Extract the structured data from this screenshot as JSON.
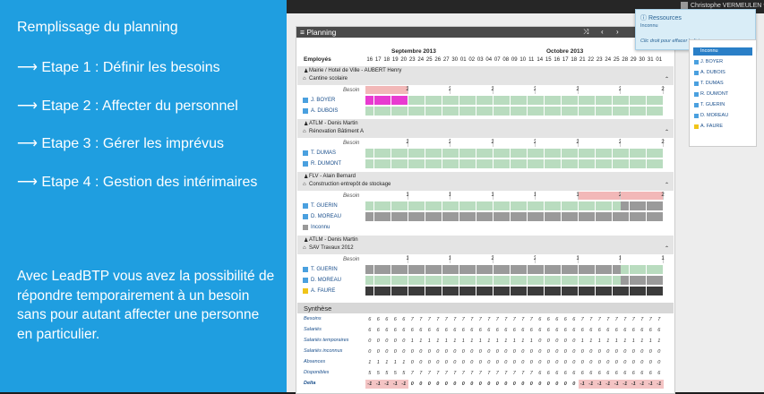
{
  "slide": {
    "title": "Remplissage du planning",
    "steps": [
      "⟶ Etape 1 : Définir les besoins",
      "⟶ Etape 2 : Affecter du personnel",
      "⟶ Etape 3 : Gérer les imprévus",
      "⟶ Etape 4 : Gestion des intérimaires"
    ],
    "paragraph": "Avec LeadBTP vous avez la possibilité de répondre temporairement à un besoin sans pour autant affecter une personne en particulier."
  },
  "app": {
    "user": "Christophe VERMEULEN",
    "panel_title": "Planning",
    "employees_header": "Employés",
    "month1": "Septembre 2013",
    "month2": "Octobre 2013",
    "days": [
      "16",
      "17",
      "18",
      "19",
      "20",
      "23",
      "24",
      "25",
      "26",
      "27",
      "30",
      "01",
      "02",
      "03",
      "04",
      "07",
      "08",
      "09",
      "10",
      "11",
      "14",
      "15",
      "16",
      "17",
      "18",
      "21",
      "22",
      "23",
      "24",
      "25",
      "28",
      "29",
      "30",
      "31",
      "01"
    ],
    "besoin_label": "Besoin"
  },
  "projects": [
    {
      "client": "Mairie / Hotel de Ville - AUBERT Henry",
      "site": "Cantine scolaire",
      "besoins": [
        "2",
        "2",
        "2",
        "2",
        "2",
        "2",
        "2"
      ],
      "rows": [
        {
          "name": "J. BOYER",
          "pattern": "MGGGGGG",
          "icon": "blue"
        },
        {
          "name": "A. DUBOIS",
          "pattern": "GGGGGGG",
          "icon": "blue"
        }
      ]
    },
    {
      "client": "ATLM - Denis Martin",
      "site": "Rénovation Bâtiment A",
      "besoins": [
        "2",
        "2",
        "2",
        "2",
        "2",
        "2",
        "2"
      ],
      "rows": [
        {
          "name": "T. DUMAS",
          "pattern": "GGGGGGG",
          "icon": "blue"
        },
        {
          "name": "R. DUMONT",
          "pattern": "GGGGGGG",
          "icon": "blue"
        }
      ]
    },
    {
      "client": "FLV - Alain Bernard",
      "site": "Construction entrepôt de stockage",
      "besoins": [
        "1",
        "1",
        "1",
        "1",
        "1",
        "2",
        "2"
      ],
      "rows": [
        {
          "name": "T. GUERIN",
          "pattern": "GGGGGGS",
          "icon": "blue"
        },
        {
          "name": "D. MOREAU",
          "pattern": "SSSSSSS",
          "icon": "blue"
        },
        {
          "name": "Inconnu",
          "pattern": "EEEEEEE",
          "icon": "gray"
        }
      ]
    },
    {
      "client": "ATLM - Denis Martin",
      "site": "SAV Travaux 2012",
      "besoins": [
        "1",
        "1",
        "2",
        "2",
        "1",
        "1",
        "1"
      ],
      "rows": [
        {
          "name": "T. GUERIN",
          "pattern": "SSSSSSG",
          "icon": "blue"
        },
        {
          "name": "D. MOREAU",
          "pattern": "GGGGGGS",
          "icon": "blue"
        },
        {
          "name": "A. FAURE",
          "pattern": "DDDDDDD",
          "icon": "yellow"
        }
      ]
    }
  ],
  "synthese": {
    "title": "Synthèse",
    "rows": [
      {
        "label": "Besoins",
        "cells": [
          "6",
          "6",
          "6",
          "6",
          "6",
          "7",
          "7",
          "7",
          "7",
          "7",
          "7",
          "7",
          "7",
          "7",
          "7",
          "7",
          "7",
          "7",
          "7",
          "7",
          "6",
          "6",
          "6",
          "6",
          "6",
          "7",
          "7",
          "7",
          "7",
          "7",
          "7",
          "7",
          "7",
          "7",
          "7"
        ]
      },
      {
        "label": "Salariés",
        "cells": [
          "6",
          "6",
          "6",
          "6",
          "6",
          "6",
          "6",
          "6",
          "6",
          "6",
          "6",
          "6",
          "6",
          "6",
          "6",
          "6",
          "6",
          "6",
          "6",
          "6",
          "6",
          "6",
          "6",
          "6",
          "6",
          "6",
          "6",
          "6",
          "6",
          "6",
          "6",
          "6",
          "6",
          "6",
          "6"
        ]
      },
      {
        "label": "Salariés temporaires",
        "cells": [
          "0",
          "0",
          "0",
          "0",
          "0",
          "1",
          "1",
          "1",
          "1",
          "1",
          "1",
          "1",
          "1",
          "1",
          "1",
          "1",
          "1",
          "1",
          "1",
          "1",
          "0",
          "0",
          "0",
          "0",
          "0",
          "1",
          "1",
          "1",
          "1",
          "1",
          "1",
          "1",
          "1",
          "1",
          "1"
        ]
      },
      {
        "label": "Salariés inconnus",
        "cells": [
          "0",
          "0",
          "0",
          "0",
          "0",
          "0",
          "0",
          "0",
          "0",
          "0",
          "0",
          "0",
          "0",
          "0",
          "0",
          "0",
          "0",
          "0",
          "0",
          "0",
          "0",
          "0",
          "0",
          "0",
          "0",
          "0",
          "0",
          "0",
          "0",
          "0",
          "0",
          "0",
          "0",
          "0",
          "0"
        ]
      },
      {
        "label": "Absences",
        "cells": [
          "1",
          "1",
          "1",
          "1",
          "1",
          "0",
          "0",
          "0",
          "0",
          "0",
          "0",
          "0",
          "0",
          "0",
          "0",
          "0",
          "0",
          "0",
          "0",
          "0",
          "0",
          "0",
          "0",
          "0",
          "0",
          "0",
          "0",
          "0",
          "0",
          "0",
          "0",
          "0",
          "0",
          "0",
          "0"
        ]
      },
      {
        "label": "Disponibles",
        "cells": [
          "5",
          "5",
          "5",
          "5",
          "5",
          "7",
          "7",
          "7",
          "7",
          "7",
          "7",
          "7",
          "7",
          "7",
          "7",
          "7",
          "7",
          "7",
          "7",
          "7",
          "6",
          "6",
          "6",
          "6",
          "6",
          "6",
          "6",
          "6",
          "6",
          "6",
          "6",
          "6",
          "6",
          "6",
          "6"
        ]
      },
      {
        "label": "Delta",
        "cells": [
          "-1",
          "-1",
          "-1",
          "-1",
          "-1",
          "0",
          "0",
          "0",
          "0",
          "0",
          "0",
          "0",
          "0",
          "0",
          "0",
          "0",
          "0",
          "0",
          "0",
          "0",
          "0",
          "0",
          "0",
          "0",
          "0",
          "-1",
          "-1",
          "-1",
          "-1",
          "-1",
          "-1",
          "-1",
          "-1",
          "-1",
          "-1"
        ]
      }
    ]
  },
  "ressources": {
    "title": "Ressources",
    "subtitle": "Inconnu",
    "hint": "Clic droit pour effacer la liste",
    "items": [
      "Inconnu",
      "J. BOYER",
      "A. DUBOIS",
      "T. DUMAS",
      "R. DUMONT",
      "T. GUERIN",
      "D. MOREAU",
      "A. FAURE"
    ]
  },
  "colors": {
    "slide_bg": "#1f9ee0",
    "green": "#b9dcbf",
    "magenta": "#e83bd0",
    "dark": "#3b3b3b",
    "gray": "#9a9a9a",
    "pink": "#f2b8b8",
    "delta_bg": "#f4c4c4"
  }
}
